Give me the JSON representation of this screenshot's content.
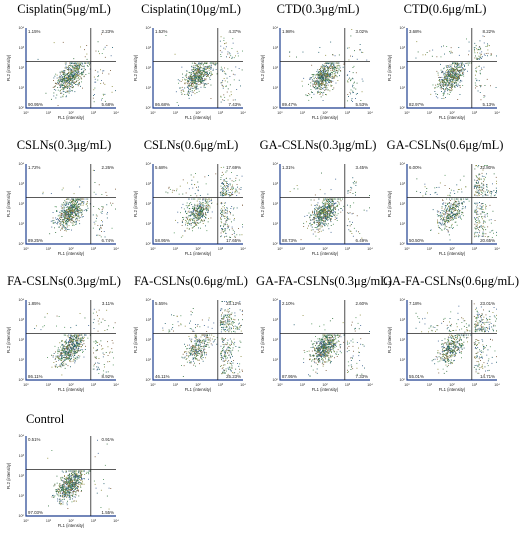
{
  "figure": {
    "axis_x_label": "FL1 (intensity)",
    "axis_y_label": "FL2 (intensity)",
    "tick_labels": [
      "10⁰",
      "10¹",
      "10²",
      "10³",
      "10⁴"
    ]
  },
  "chart_data": [
    {
      "type": "scatter",
      "title": "Cisplatin(5μg/mL)",
      "quadrants": {
        "upper_left": "1.15%",
        "upper_right": "2.23%",
        "lower_left": "90.95%",
        "lower_right": "5.68%"
      },
      "xlabel": "FL1 (intensity)",
      "ylabel": "FL2 (intensity)",
      "scale": "log",
      "xlim": [
        1,
        10000
      ],
      "ylim": [
        1,
        10000
      ]
    },
    {
      "type": "scatter",
      "title": "Cisplatin(10μg/mL)",
      "quadrants": {
        "upper_left": "1.52%",
        "upper_right": "4.37%",
        "lower_left": "86.68%",
        "lower_right": "7.43%"
      },
      "xlabel": "FL1 (intensity)",
      "ylabel": "FL2 (intensity)",
      "scale": "log",
      "xlim": [
        1,
        10000
      ],
      "ylim": [
        1,
        10000
      ]
    },
    {
      "type": "scatter",
      "title": "CTD(0.3μg/mL)",
      "quadrants": {
        "upper_left": "1.98%",
        "upper_right": "3.02%",
        "lower_left": "89.47%",
        "lower_right": "5.53%"
      },
      "xlabel": "FL1 (intensity)",
      "ylabel": "FL2 (intensity)",
      "scale": "log",
      "xlim": [
        1,
        10000
      ],
      "ylim": [
        1,
        10000
      ]
    },
    {
      "type": "scatter",
      "title": "CTD(0.6μg/mL)",
      "quadrants": {
        "upper_left": "3.68%",
        "upper_right": "8.22%",
        "lower_left": "82.97%",
        "lower_right": "5.13%"
      },
      "xlabel": "FL1 (intensity)",
      "ylabel": "FL2 (intensity)",
      "scale": "log",
      "xlim": [
        1,
        10000
      ],
      "ylim": [
        1,
        10000
      ]
    },
    {
      "type": "scatter",
      "title": "CSLNs(0.3μg/mL)",
      "quadrants": {
        "upper_left": "1.72%",
        "upper_right": "2.26%",
        "lower_left": "89.25%",
        "lower_right": "6.74%"
      },
      "xlabel": "FL1 (intensity)",
      "ylabel": "FL2 (intensity)",
      "scale": "log",
      "xlim": [
        1,
        10000
      ],
      "ylim": [
        1,
        10000
      ]
    },
    {
      "type": "scatter",
      "title": "CSLNs(0.6μg/mL)",
      "quadrants": {
        "upper_left": "5.68%",
        "upper_right": "17.69%",
        "lower_left": "58.95%",
        "lower_right": "17.65%"
      },
      "xlabel": "FL1 (intensity)",
      "ylabel": "FL2 (intensity)",
      "scale": "log",
      "xlim": [
        1,
        10000
      ],
      "ylim": [
        1,
        10000
      ]
    },
    {
      "type": "scatter",
      "title": "GA-CSLNs(0.3μg/mL)",
      "quadrants": {
        "upper_left": "1.31%",
        "upper_right": "3.45%",
        "lower_left": "88.73%",
        "lower_right": "6.49%"
      },
      "xlabel": "FL1 (intensity)",
      "ylabel": "FL2 (intensity)",
      "scale": "log",
      "xlim": [
        1,
        10000
      ],
      "ylim": [
        1,
        10000
      ]
    },
    {
      "type": "scatter",
      "title": "GA-CSLNs(0.6μg/mL)",
      "quadrants": {
        "upper_left": "6.00%",
        "upper_right": "22.80%",
        "lower_left": "50.50%",
        "lower_right": "20.65%"
      },
      "xlabel": "FL1 (intensity)",
      "ylabel": "FL2 (intensity)",
      "scale": "log",
      "xlim": [
        1,
        10000
      ],
      "ylim": [
        1,
        10000
      ]
    },
    {
      "type": "scatter",
      "title": "FA-CSLNs(0.3μg/mL)",
      "quadrants": {
        "upper_left": "1.85%",
        "upper_right": "3.11%",
        "lower_left": "86.11%",
        "lower_right": "8.92%"
      },
      "xlabel": "FL1 (intensity)",
      "ylabel": "FL2 (intensity)",
      "scale": "log",
      "xlim": [
        1,
        10000
      ],
      "ylim": [
        1,
        10000
      ]
    },
    {
      "type": "scatter",
      "title": "FA-CSLNs(0.6μg/mL)",
      "quadrants": {
        "upper_left": "5.55%",
        "upper_right": "23.12%",
        "lower_left": "46.11%",
        "lower_right": "25.23%"
      },
      "xlabel": "FL1 (intensity)",
      "ylabel": "FL2 (intensity)",
      "scale": "log",
      "xlim": [
        1,
        10000
      ],
      "ylim": [
        1,
        10000
      ]
    },
    {
      "type": "scatter",
      "title": "GA-FA-CSLNs(0.3μg/mL)",
      "quadrants": {
        "upper_left": "2.10%",
        "upper_right": "2.60%",
        "lower_left": "87.95%",
        "lower_right": "7.33%"
      },
      "xlabel": "FL1 (intensity)",
      "ylabel": "FL2 (intensity)",
      "scale": "log",
      "xlim": [
        1,
        10000
      ],
      "ylim": [
        1,
        10000
      ]
    },
    {
      "type": "scatter",
      "title": "GA-FA-CSLNs(0.6μg/mL)",
      "quadrants": {
        "upper_left": "7.18%",
        "upper_right": "23.01%",
        "lower_left": "55.01%",
        "lower_right": "14.71%"
      },
      "xlabel": "FL1 (intensity)",
      "ylabel": "FL2 (intensity)",
      "scale": "log",
      "xlim": [
        1,
        10000
      ],
      "ylim": [
        1,
        10000
      ]
    },
    {
      "type": "scatter",
      "title": "Control",
      "quadrants": {
        "upper_left": "0.51%",
        "upper_right": "0.91%",
        "lower_left": "97.03%",
        "lower_right": "1.55%"
      },
      "xlabel": "FL1 (intensity)",
      "ylabel": "FL2 (intensity)",
      "scale": "log",
      "xlim": [
        1,
        10000
      ],
      "ylim": [
        1,
        10000
      ]
    }
  ],
  "colors": {
    "axis": "#1f3f8f",
    "gate": "#222222",
    "dots": [
      "#2e6b3a",
      "#4d8f56",
      "#1f5b6b",
      "#7a5a3a",
      "#8a8a3a",
      "#3a5f8f"
    ]
  }
}
